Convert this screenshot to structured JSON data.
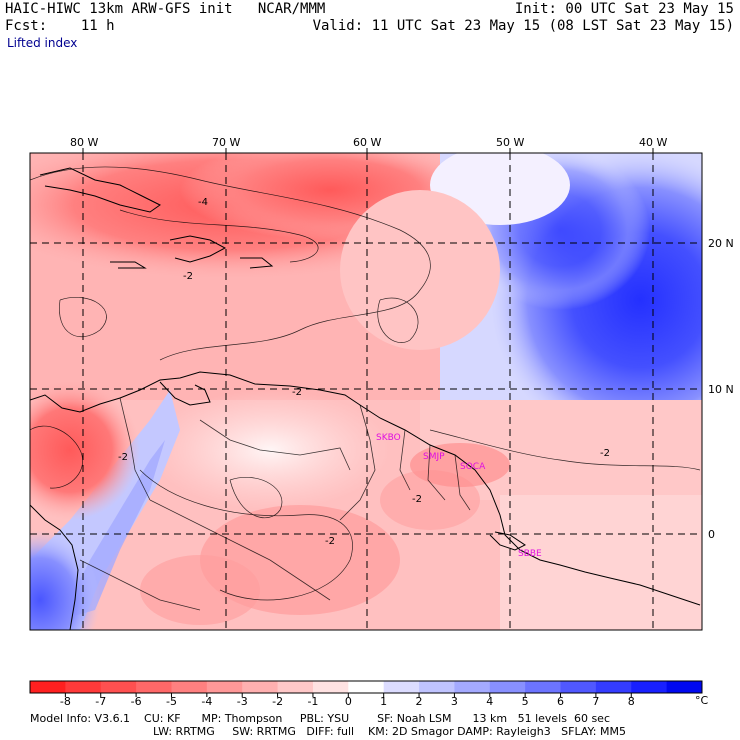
{
  "header": {
    "model_title": "HAIC-HIWC 13km ARW-GFS init",
    "org": "NCAR/MMM",
    "forecast": "Fcst:    11 h",
    "init": "Init: 00 UTC Sat 23 May 15",
    "valid": "Valid: 11 UTC Sat 23 May 15 (08 LST Sat 23 May 15)",
    "field": "Lifted index"
  },
  "map": {
    "lon_labels": [
      "80 W",
      "70 W",
      "60 W",
      "50 W",
      "40 W"
    ],
    "lat_labels": [
      "20 N",
      "10 N",
      "0"
    ],
    "stations": [
      "SKBO",
      "SMJP",
      "SOCA",
      "SBBE"
    ],
    "contour_labels": [
      "-4",
      "-2",
      "-2",
      "-2",
      "-2",
      "-2",
      "-2"
    ]
  },
  "colorbar": {
    "ticks": [
      "-8",
      "-7",
      "-6",
      "-5",
      "-4",
      "-3",
      "-2",
      "-1",
      "0",
      "1",
      "2",
      "3",
      "4",
      "5",
      "6",
      "7",
      "8"
    ],
    "unit": "°C",
    "colors": [
      "#ff2020",
      "#ff3a3a",
      "#ff5050",
      "#ff6868",
      "#ff8080",
      "#ff9898",
      "#ffb0b0",
      "#ffc8c8",
      "#ffe2e2",
      "#ffffff",
      "#dcdcff",
      "#c0c4ff",
      "#a4aaff",
      "#8890ff",
      "#6c74ff",
      "#5058ff",
      "#343cff",
      "#1820ff",
      "#0008f0"
    ]
  },
  "model_info": {
    "line1": "Model Info: V3.6.1    CU: KF      MP: Thompson     PBL: YSU        SF: Noah LSM      13 km   51 levels  60 sec",
    "line2": "LW: RRTMG     SW: RRTMG   DIFF: full    KM: 2D Smagor DAMP: Rayleigh3   SFLAY: MM5"
  }
}
